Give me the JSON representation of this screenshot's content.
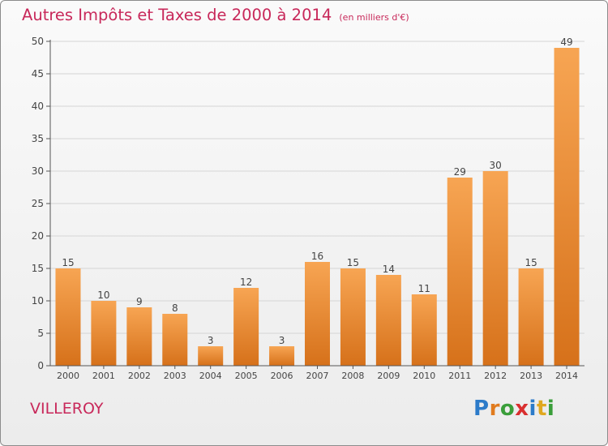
{
  "title": "Autres Impôts et Taxes de 2000 à 2014",
  "unit_note": "(en milliers d'€)",
  "commune": "VILLEROY",
  "logo": {
    "text": "Proxiti",
    "letters": [
      {
        "ch": "P",
        "color": "#2c7bc9"
      },
      {
        "ch": "r",
        "color": "#e07b1f"
      },
      {
        "ch": "o",
        "color": "#3a9e3a"
      },
      {
        "ch": "x",
        "color": "#d92f2f"
      },
      {
        "ch": "i",
        "color": "#2c7bc9"
      },
      {
        "ch": "t",
        "color": "#e0a81f"
      },
      {
        "ch": "i",
        "color": "#3a9e3a"
      }
    ]
  },
  "colors": {
    "bar_top": "#f7a553",
    "bar_bottom": "#d6711a",
    "title": "#c8285a",
    "grid": "#d5d5d5",
    "axis": "#555555"
  },
  "chart_data": {
    "type": "bar",
    "categories": [
      "2000",
      "2001",
      "2002",
      "2003",
      "2004",
      "2005",
      "2006",
      "2007",
      "2008",
      "2009",
      "2010",
      "2011",
      "2012",
      "2013",
      "2014"
    ],
    "values": [
      15,
      10,
      9,
      8,
      3,
      12,
      3,
      16,
      15,
      14,
      11,
      29,
      30,
      15,
      49
    ],
    "ylim": [
      0,
      50
    ],
    "yticks": [
      0,
      5,
      10,
      15,
      20,
      25,
      30,
      35,
      40,
      45,
      50
    ],
    "grid": true
  }
}
